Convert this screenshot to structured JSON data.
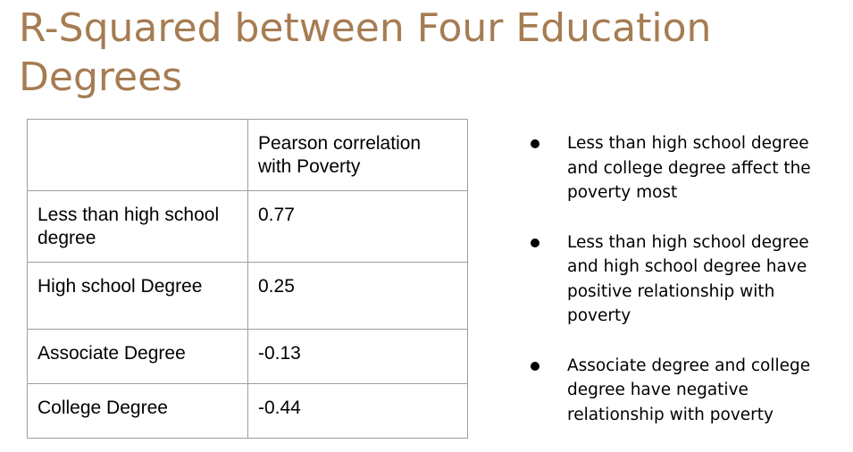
{
  "title": "R-Squared between Four Education Degrees",
  "table": {
    "header": [
      "",
      "Pearson correlation with Poverty"
    ],
    "rows": [
      {
        "label": "Less than high school degree",
        "value": "0.77"
      },
      {
        "label": "High school Degree",
        "value": "0.25"
      },
      {
        "label": "Associate Degree",
        "value": "-0.13"
      },
      {
        "label": "College Degree",
        "value": "-0.44"
      }
    ]
  },
  "bullets": [
    "Less than high school degree and college degree affect the poverty most",
    "Less than high school degree and high school degree have positive relationship with poverty",
    "Associate degree and college degree have negative relationship with poverty"
  ],
  "colors": {
    "title": "#a67c52",
    "table_border": "#9e9e9e",
    "text": "#000000"
  }
}
